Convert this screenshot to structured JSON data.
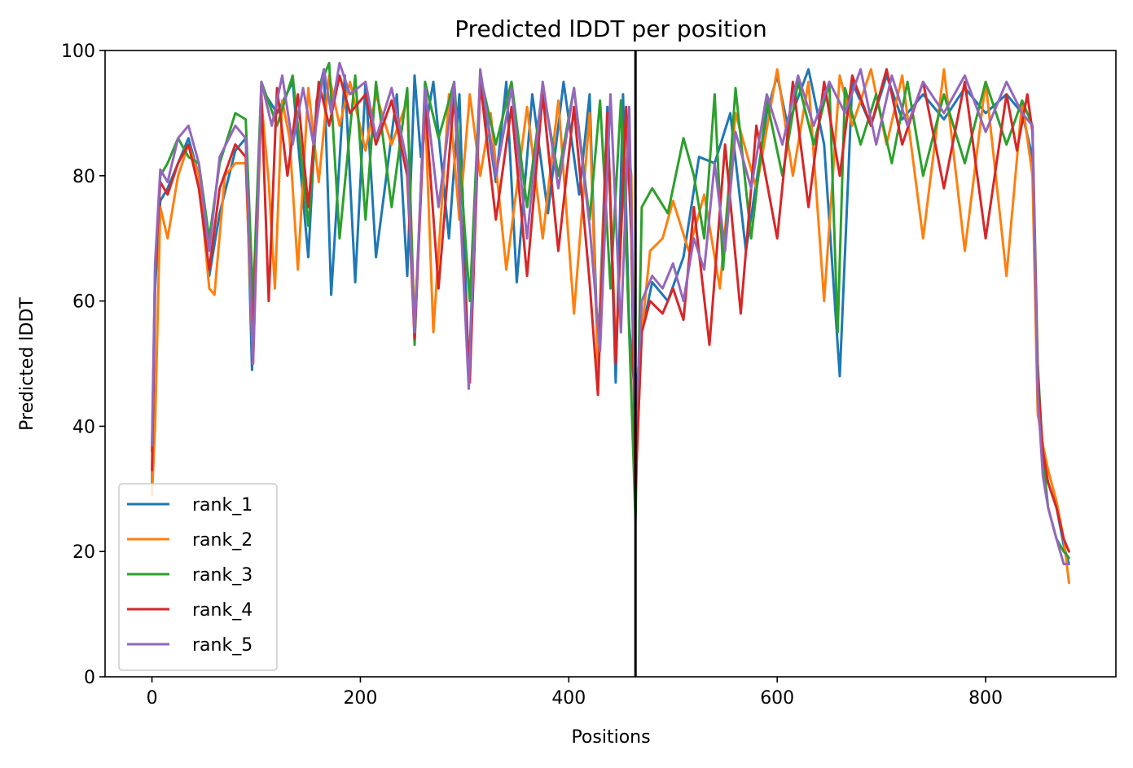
{
  "chart_data": {
    "type": "line",
    "title": "Predicted lDDT per position",
    "xlabel": "Positions",
    "ylabel": "Predicted lDDT",
    "xlim": [
      -45,
      925
    ],
    "ylim": [
      0,
      100
    ],
    "xticks": [
      0,
      200,
      400,
      600,
      800
    ],
    "yticks": [
      0,
      20,
      40,
      60,
      80,
      100
    ],
    "grid": false,
    "legend_position": "lower-left",
    "divider_x": 464,
    "divider_color": "#000000",
    "series": [
      {
        "name": "rank_1",
        "color": "#1f77b4",
        "x": [
          0,
          3,
          8,
          15,
          25,
          35,
          45,
          55,
          65,
          80,
          90,
          96,
          105,
          120,
          135,
          150,
          158,
          165,
          172,
          185,
          195,
          205,
          215,
          235,
          245,
          252,
          258,
          270,
          285,
          295,
          304,
          315,
          330,
          340,
          350,
          365,
          380,
          395,
          410,
          420,
          428,
          437,
          445,
          452,
          458,
          464,
          470,
          480,
          495,
          510,
          525,
          540,
          555,
          570,
          590,
          600,
          610,
          630,
          645,
          660,
          672,
          690,
          705,
          720,
          740,
          760,
          780,
          800,
          820,
          835,
          845,
          850,
          855,
          860,
          868,
          875,
          880
        ],
        "values": [
          30,
          62,
          76,
          78,
          82,
          86,
          80,
          64,
          74,
          84,
          86,
          49,
          94,
          90,
          95,
          67,
          92,
          97,
          61,
          96,
          63,
          95,
          67,
          93,
          64,
          96,
          83,
          95,
          70,
          93,
          48,
          96,
          79,
          95,
          63,
          93,
          74,
          95,
          77,
          93,
          51,
          91,
          47,
          93,
          56,
          44,
          55,
          63,
          60,
          67,
          83,
          82,
          90,
          68,
          90,
          96,
          88,
          97,
          85,
          48,
          95,
          88,
          96,
          89,
          93,
          89,
          94,
          90,
          93,
          90,
          83,
          44,
          35,
          31,
          27,
          21,
          18
        ]
      },
      {
        "name": "rank_2",
        "color": "#ff7f0e",
        "x": [
          0,
          3,
          8,
          15,
          25,
          35,
          45,
          55,
          60,
          70,
          80,
          90,
          97,
          105,
          112,
          118,
          125,
          132,
          140,
          150,
          160,
          170,
          180,
          190,
          205,
          215,
          230,
          245,
          252,
          262,
          270,
          285,
          295,
          305,
          315,
          325,
          340,
          360,
          375,
          390,
          405,
          420,
          428,
          437,
          445,
          455,
          460,
          464,
          470,
          478,
          490,
          500,
          515,
          530,
          545,
          560,
          580,
          600,
          615,
          630,
          645,
          660,
          672,
          690,
          705,
          720,
          740,
          760,
          780,
          800,
          820,
          835,
          845,
          850,
          855,
          860,
          868,
          875,
          880
        ],
        "values": [
          29,
          40,
          75,
          70,
          80,
          85,
          80,
          62,
          61,
          80,
          82,
          82,
          50,
          92,
          79,
          62,
          92,
          86,
          65,
          94,
          79,
          96,
          88,
          95,
          84,
          93,
          85,
          92,
          56,
          91,
          55,
          93,
          73,
          93,
          80,
          90,
          65,
          91,
          70,
          92,
          58,
          90,
          49,
          90,
          52,
          88,
          80,
          30,
          55,
          68,
          70,
          76,
          68,
          77,
          62,
          90,
          78,
          97,
          80,
          95,
          60,
          96,
          88,
          97,
          85,
          96,
          70,
          97,
          68,
          95,
          64,
          92,
          80,
          42,
          37,
          33,
          28,
          22,
          15
        ]
      },
      {
        "name": "rank_3",
        "color": "#2ca02c",
        "x": [
          0,
          3,
          8,
          15,
          25,
          35,
          45,
          55,
          65,
          80,
          90,
          97,
          105,
          120,
          135,
          150,
          160,
          170,
          180,
          195,
          205,
          215,
          230,
          245,
          252,
          262,
          275,
          290,
          305,
          315,
          330,
          345,
          360,
          375,
          390,
          405,
          420,
          430,
          440,
          450,
          458,
          464,
          470,
          480,
          495,
          510,
          520,
          530,
          540,
          548,
          560,
          575,
          590,
          605,
          620,
          635,
          650,
          658,
          665,
          680,
          695,
          710,
          725,
          740,
          760,
          780,
          800,
          820,
          835,
          845,
          850,
          855,
          860,
          868,
          875,
          880
        ],
        "values": [
          36,
          64,
          80,
          82,
          86,
          83,
          82,
          70,
          82,
          90,
          89,
          60,
          95,
          88,
          96,
          72,
          94,
          98,
          70,
          96,
          73,
          95,
          75,
          94,
          53,
          95,
          86,
          95,
          60,
          96,
          85,
          95,
          75,
          94,
          80,
          94,
          73,
          92,
          62,
          92,
          55,
          25,
          75,
          78,
          74,
          86,
          80,
          70,
          93,
          65,
          94,
          70,
          92,
          80,
          95,
          85,
          95,
          55,
          94,
          85,
          93,
          82,
          95,
          80,
          93,
          82,
          95,
          85,
          92,
          88,
          50,
          35,
          27,
          22,
          20,
          19
        ]
      },
      {
        "name": "rank_4",
        "color": "#d62728",
        "x": [
          0,
          3,
          8,
          15,
          25,
          35,
          45,
          55,
          65,
          80,
          90,
          97,
          105,
          112,
          120,
          130,
          140,
          150,
          160,
          170,
          180,
          190,
          205,
          215,
          230,
          245,
          252,
          262,
          275,
          290,
          305,
          315,
          330,
          345,
          360,
          375,
          390,
          405,
          420,
          428,
          437,
          445,
          455,
          460,
          464,
          470,
          478,
          490,
          500,
          510,
          520,
          535,
          550,
          565,
          580,
          600,
          615,
          630,
          645,
          660,
          672,
          690,
          705,
          720,
          740,
          760,
          780,
          800,
          820,
          830,
          840,
          845,
          850,
          855,
          860,
          868,
          875,
          880
        ],
        "values": [
          33,
          65,
          79,
          77,
          82,
          85,
          78,
          65,
          78,
          85,
          83,
          54,
          93,
          60,
          94,
          80,
          93,
          75,
          95,
          88,
          96,
          90,
          93,
          85,
          92,
          80,
          54,
          92,
          62,
          93,
          47,
          95,
          73,
          91,
          64,
          93,
          68,
          91,
          63,
          45,
          90,
          50,
          91,
          70,
          30,
          55,
          60,
          58,
          62,
          57,
          75,
          53,
          85,
          58,
          88,
          70,
          95,
          75,
          95,
          80,
          96,
          88,
          97,
          85,
          95,
          78,
          95,
          70,
          93,
          84,
          93,
          87,
          48,
          36,
          31,
          27,
          22,
          20
        ]
      },
      {
        "name": "rank_5",
        "color": "#9467bd",
        "x": [
          0,
          3,
          8,
          15,
          25,
          35,
          45,
          55,
          65,
          80,
          90,
          97,
          105,
          115,
          125,
          135,
          145,
          155,
          165,
          172,
          180,
          190,
          205,
          215,
          230,
          245,
          252,
          262,
          275,
          290,
          304,
          315,
          330,
          345,
          360,
          375,
          390,
          405,
          420,
          430,
          440,
          450,
          458,
          464,
          470,
          480,
          490,
          500,
          510,
          520,
          530,
          540,
          550,
          560,
          575,
          590,
          605,
          620,
          635,
          650,
          665,
          680,
          695,
          710,
          725,
          740,
          760,
          780,
          800,
          820,
          835,
          845,
          850,
          855,
          860,
          868,
          875,
          880
        ],
        "values": [
          37,
          66,
          81,
          79,
          86,
          88,
          82,
          68,
          83,
          88,
          86,
          50,
          95,
          88,
          96,
          85,
          94,
          85,
          97,
          90,
          98,
          93,
          95,
          86,
          94,
          82,
          55,
          94,
          75,
          95,
          46,
          97,
          80,
          94,
          70,
          95,
          78,
          94,
          72,
          52,
          93,
          55,
          91,
          40,
          60,
          64,
          62,
          66,
          60,
          70,
          65,
          82,
          68,
          87,
          78,
          93,
          85,
          96,
          88,
          95,
          90,
          97,
          85,
          96,
          88,
          95,
          90,
          96,
          87,
          95,
          90,
          88,
          45,
          32,
          27,
          22,
          18,
          18
        ]
      }
    ]
  }
}
